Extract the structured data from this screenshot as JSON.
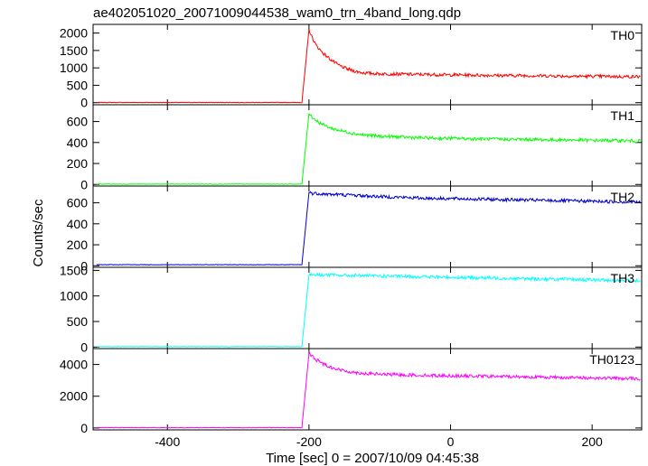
{
  "title": "ae402051020_20071009044538_wam0_trn_4band_long.qdp",
  "ylabel": "Counts/sec",
  "xlabel": "Time [sec] 0 = 2007/10/09 04:45:38",
  "chart_data": {
    "type": "line",
    "title": "ae402051020_20071009044538_wam0_trn_4band_long.qdp",
    "xlabel": "Time [sec] 0 = 2007/10/09 04:45:38",
    "ylabel": "Counts/sec",
    "xlim": [
      -505,
      270
    ],
    "xticks": [
      "-400",
      "-200",
      "0",
      "200"
    ],
    "trigger_time": -200,
    "x": [
      -500,
      -400,
      -300,
      -210,
      -200,
      -195,
      -190,
      -180,
      -170,
      -160,
      -150,
      -140,
      -130,
      -120,
      -100,
      -80,
      -60,
      -40,
      -20,
      0,
      20,
      40,
      60,
      80,
      100,
      120,
      140,
      160,
      180,
      200,
      220,
      240,
      260,
      268
    ],
    "panels": [
      {
        "name": "TH0",
        "color": "#ff0000",
        "ylim": [
          -60,
          2250
        ],
        "yticks": [
          "0",
          "500",
          "1000",
          "1500",
          "2000"
        ],
        "values": [
          5,
          5,
          5,
          5,
          2100,
          1850,
          1650,
          1420,
          1250,
          1100,
          1000,
          930,
          880,
          850,
          830,
          825,
          815,
          810,
          805,
          800,
          795,
          790,
          785,
          780,
          780,
          775,
          770,
          765,
          760,
          760,
          755,
          750,
          750,
          745
        ]
      },
      {
        "name": "TH1",
        "color": "#00ff00",
        "ylim": [
          -15,
          760
        ],
        "yticks": [
          "0",
          "200",
          "400",
          "600"
        ],
        "values": [
          3,
          3,
          3,
          3,
          680,
          640,
          610,
          570,
          540,
          520,
          505,
          490,
          480,
          470,
          460,
          455,
          450,
          445,
          440,
          440,
          438,
          435,
          432,
          430,
          430,
          428,
          425,
          425,
          423,
          420,
          420,
          418,
          415,
          415
        ]
      },
      {
        "name": "TH2",
        "color": "#0000cc",
        "ylim": [
          -15,
          760
        ],
        "yticks": [
          "0",
          "200",
          "400",
          "600"
        ],
        "values": [
          10,
          10,
          10,
          10,
          700,
          690,
          690,
          685,
          680,
          680,
          675,
          675,
          670,
          665,
          660,
          655,
          650,
          645,
          642,
          640,
          638,
          635,
          632,
          630,
          628,
          625,
          622,
          620,
          618,
          615,
          612,
          610,
          608,
          605
        ]
      },
      {
        "name": "TH3",
        "color": "#00ffff",
        "ylim": [
          -30,
          1560
        ],
        "yticks": [
          "0",
          "500",
          "1000",
          "1500"
        ],
        "values": [
          8,
          8,
          8,
          8,
          1420,
          1420,
          1415,
          1410,
          1410,
          1405,
          1400,
          1400,
          1400,
          1395,
          1390,
          1385,
          1380,
          1375,
          1370,
          1365,
          1360,
          1355,
          1350,
          1345,
          1340,
          1335,
          1330,
          1325,
          1320,
          1315,
          1310,
          1305,
          1300,
          1300
        ]
      },
      {
        "name": "TH0123",
        "color": "#ff00ff",
        "ylim": [
          -120,
          5000
        ],
        "yticks": [
          "0",
          "2000",
          "4000"
        ],
        "values": [
          20,
          20,
          20,
          20,
          4700,
          4500,
          4300,
          4050,
          3850,
          3700,
          3600,
          3520,
          3470,
          3430,
          3390,
          3360,
          3340,
          3320,
          3300,
          3290,
          3270,
          3260,
          3250,
          3240,
          3220,
          3210,
          3200,
          3180,
          3170,
          3150,
          3140,
          3120,
          3110,
          3100
        ]
      }
    ]
  }
}
